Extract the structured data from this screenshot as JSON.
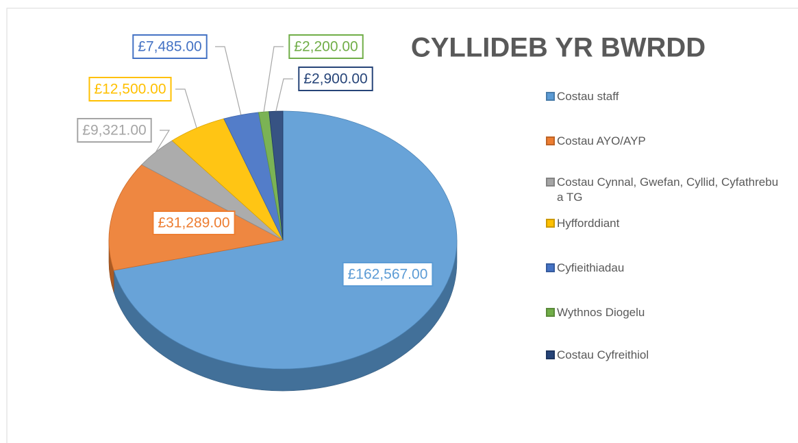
{
  "chart_data": {
    "type": "pie",
    "title": "CYLLIDEB YR BWRDD",
    "categories": [
      "Costau staff",
      "Costau AYO/AYP",
      "Costau Cynnal, Gwefan, Cyllid, Cyfathrebu a TG",
      "Hyfforddiant",
      "Cyfieithiadau",
      "Wythnos Diogelu",
      "Costau Cyfreithiol"
    ],
    "values": [
      162567,
      31289,
      9321,
      12500,
      7485,
      2200,
      2900
    ],
    "value_labels": [
      "£162,567.00",
      "£31,289.00",
      "£9,321.00",
      "£12,500.00",
      "£7,485.00",
      "£2,200.00",
      "£2,900.00"
    ],
    "colors": [
      "#5b9bd5",
      "#ed7d31",
      "#a5a5a5",
      "#ffc000",
      "#4472c4",
      "#70ad47",
      "#264478"
    ],
    "legend": "right"
  }
}
